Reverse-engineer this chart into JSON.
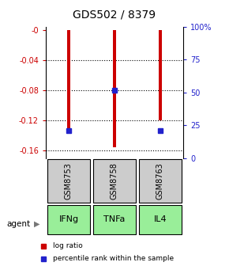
{
  "title": "GDS502 / 8379",
  "samples": [
    "GSM8753",
    "GSM8758",
    "GSM8763"
  ],
  "agents": [
    "IFNg",
    "TNFa",
    "IL4"
  ],
  "log_ratios": [
    -0.13,
    -0.155,
    -0.12
  ],
  "percentile_values": [
    -0.133,
    -0.08,
    -0.133
  ],
  "ylim": [
    -0.17,
    0.005
  ],
  "yticks_left": [
    0,
    -0.04,
    -0.08,
    -0.12,
    -0.16
  ],
  "ytick_labels_left": [
    "-0",
    "-0.04",
    "-0.08",
    "-0.12",
    "-0.16"
  ],
  "yticks_right_pct": [
    100,
    75,
    50,
    25,
    0
  ],
  "ytick_labels_right": [
    "100%",
    "75",
    "50",
    "25",
    "0"
  ],
  "bar_color": "#cc0000",
  "blue_color": "#2222cc",
  "sample_bg_color": "#cccccc",
  "agent_bg_color": "#99ee99",
  "left_axis_color": "#cc0000",
  "right_axis_color": "#2222cc",
  "bar_width": 0.07,
  "blue_marker_size": 4,
  "grid_linewidth": 0.8
}
